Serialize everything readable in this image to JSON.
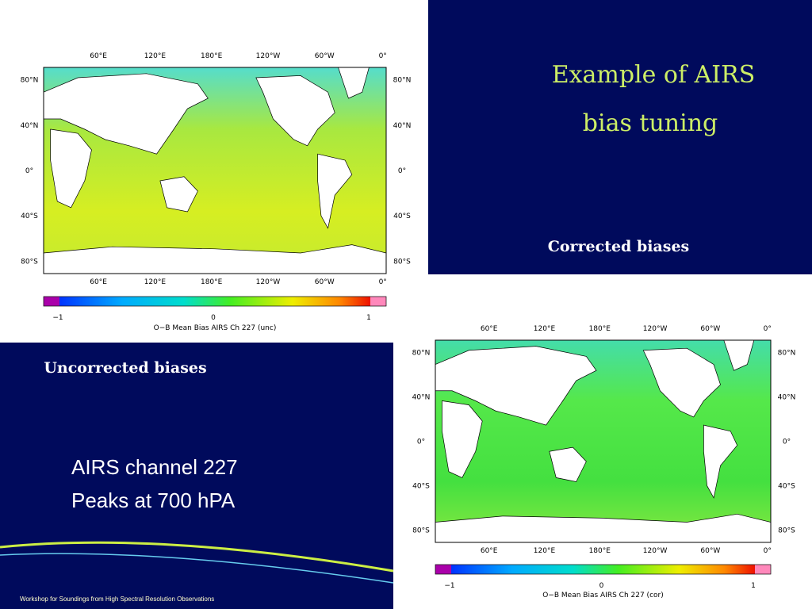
{
  "slide": {
    "title": [
      "Example of AIRS",
      "bias tuning"
    ],
    "corrected_label": "Corrected biases",
    "uncorrected_label": "Uncorrected biases",
    "body": [
      "AIRS channel 227",
      "Peaks at 700 hPA"
    ],
    "footer": "Workshop for Soundings from High Spectral Resolution Observations"
  },
  "maps": [
    {
      "lon_labels": [
        "60°E",
        "120°E",
        "180°E",
        "120°W",
        "60°W",
        "0°"
      ],
      "lat_labels": [
        "80°N",
        "40°N",
        "0°",
        "40°S",
        "80°S"
      ],
      "colorbar_ticks": [
        "−1",
        "0",
        "1"
      ],
      "caption": "O−B Mean Bias AIRS Ch 227 (unc)"
    },
    {
      "lon_labels": [
        "60°E",
        "120°E",
        "180°E",
        "120°W",
        "60°W",
        "0°"
      ],
      "lat_labels": [
        "80°N",
        "40°N",
        "0°",
        "40°S",
        "80°S"
      ],
      "colorbar_ticks": [
        "−1",
        "0",
        "1"
      ],
      "caption": "O−B Mean Bias AIRS Ch 227 (cor)"
    }
  ]
}
